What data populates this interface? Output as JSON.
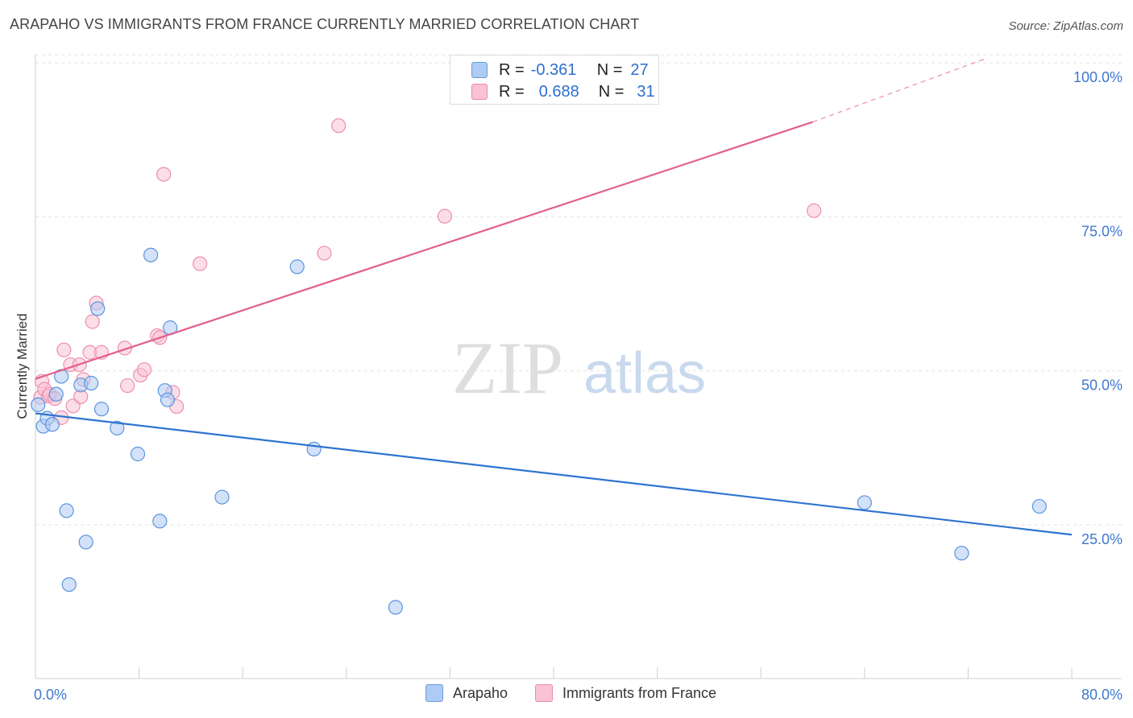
{
  "title": "ARAPAHO VS IMMIGRANTS FROM FRANCE CURRENTLY MARRIED CORRELATION CHART",
  "source": "Source: ZipAtlas.com",
  "watermark": {
    "zip": "ZIP",
    "atlas": "atlas"
  },
  "legend_top": {
    "rows": [
      {
        "r_label": "R =",
        "r_value": "-0.361",
        "n_label": "N =",
        "n_value": "27",
        "color": "#aecbf3",
        "border": "#6a9be0"
      },
      {
        "r_label": "R =",
        "r_value": "0.688",
        "n_label": "N =",
        "n_value": "31",
        "color": "#f9c3d3",
        "border": "#ea8aaa"
      }
    ]
  },
  "legend_bottom": [
    {
      "label": "Arapaho",
      "color": "#aecbf3",
      "border": "#6a9be0"
    },
    {
      "label": "Immigrants from France",
      "color": "#f9c3d3",
      "border": "#ea8aaa"
    }
  ],
  "chart_data": {
    "type": "scatter",
    "title": "ARAPAHO VS IMMIGRANTS FROM FRANCE CURRENTLY MARRIED CORRELATION CHART",
    "xlabel": "",
    "ylabel": "Currently Married",
    "xlim": [
      0,
      80
    ],
    "ylim": [
      0,
      105
    ],
    "x_tick_labels": [
      "0.0%",
      "80.0%"
    ],
    "y_ticks": [
      25,
      50,
      75,
      100
    ],
    "y_tick_labels": [
      "25.0%",
      "50.0%",
      "75.0%",
      "100.0%"
    ],
    "series": [
      {
        "name": "Arapaho",
        "color": "#5b94e0",
        "fill": "#aecbf3",
        "line_color": "#2f74d0",
        "trend": {
          "x1": 0,
          "y1": 43.1,
          "x2": 80,
          "y2": 23.4
        },
        "points": [
          [
            0.2,
            44.5
          ],
          [
            0.6,
            41.0
          ],
          [
            0.9,
            42.3
          ],
          [
            1.3,
            41.3
          ],
          [
            1.6,
            46.2
          ],
          [
            2.0,
            49.1
          ],
          [
            2.4,
            27.3
          ],
          [
            2.6,
            15.3
          ],
          [
            3.5,
            47.7
          ],
          [
            3.9,
            22.2
          ],
          [
            4.3,
            48.0
          ],
          [
            4.8,
            60.1
          ],
          [
            5.1,
            43.8
          ],
          [
            6.3,
            40.7
          ],
          [
            7.9,
            36.5
          ],
          [
            8.9,
            68.8
          ],
          [
            9.6,
            25.6
          ],
          [
            10.0,
            46.8
          ],
          [
            10.2,
            45.3
          ],
          [
            10.4,
            57.0
          ],
          [
            14.4,
            29.5
          ],
          [
            20.2,
            66.9
          ],
          [
            21.5,
            37.3
          ],
          [
            27.8,
            11.6
          ],
          [
            64.0,
            28.6
          ],
          [
            71.5,
            20.4
          ],
          [
            77.5,
            28.0
          ]
        ]
      },
      {
        "name": "Immigrants from France",
        "color": "#ec8fae",
        "fill": "#f9c3d3",
        "line_color": "#e2608c",
        "trend": {
          "x1": 0,
          "y1": 48.7,
          "x2": 60,
          "y2": 90.4
        },
        "trend_dashed": {
          "x1": 60,
          "y1": 90.4,
          "x2": 73.5,
          "y2": 100.8
        },
        "points": [
          [
            0.4,
            45.7
          ],
          [
            0.5,
            48.3
          ],
          [
            0.7,
            47.0
          ],
          [
            1.0,
            45.9
          ],
          [
            1.1,
            46.2
          ],
          [
            1.5,
            45.5
          ],
          [
            2.0,
            42.4
          ],
          [
            2.2,
            53.4
          ],
          [
            2.7,
            51.0
          ],
          [
            2.9,
            44.3
          ],
          [
            3.4,
            51.0
          ],
          [
            3.5,
            45.8
          ],
          [
            3.7,
            48.6
          ],
          [
            4.2,
            53.0
          ],
          [
            4.4,
            58.0
          ],
          [
            4.7,
            61.0
          ],
          [
            5.1,
            53.0
          ],
          [
            6.9,
            53.7
          ],
          [
            7.1,
            47.6
          ],
          [
            8.1,
            49.3
          ],
          [
            8.4,
            50.2
          ],
          [
            9.4,
            55.7
          ],
          [
            9.6,
            55.4
          ],
          [
            9.9,
            81.9
          ],
          [
            10.6,
            46.5
          ],
          [
            10.9,
            44.2
          ],
          [
            12.7,
            67.4
          ],
          [
            22.3,
            69.1
          ],
          [
            23.4,
            89.8
          ],
          [
            31.6,
            75.1
          ],
          [
            60.1,
            76.0
          ]
        ]
      }
    ]
  }
}
